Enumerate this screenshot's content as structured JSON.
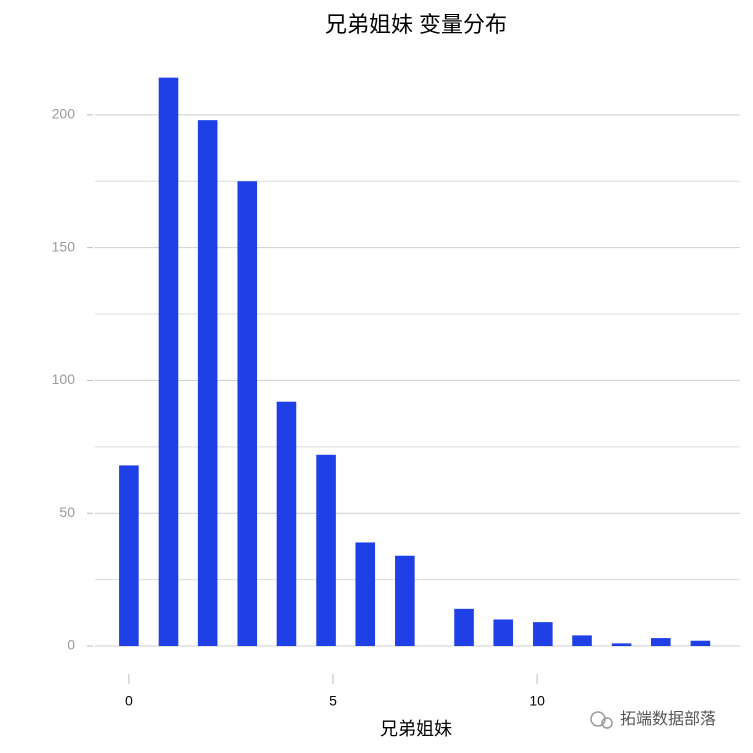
{
  "chart_data": {
    "type": "bar",
    "title": "兄弟姐妹 变量分布",
    "x_label": "兄弟姐妹",
    "x": [
      0,
      0.97,
      1.93,
      2.9,
      3.86,
      4.83,
      5.79,
      6.76,
      8.21,
      9.17,
      10.14,
      11.1,
      12.07,
      13.03,
      14
    ],
    "values": [
      68,
      214,
      198,
      175,
      92,
      72,
      39,
      34,
      14,
      10,
      9,
      4,
      1,
      3,
      2
    ],
    "color": "#1f40e6",
    "xlim": [
      -0.83,
      14.97
    ],
    "xticks": [
      0,
      5,
      10
    ],
    "ylim": [
      -3,
      215
    ],
    "yticks": [
      0,
      50,
      100,
      150,
      200
    ],
    "minor_yticks": [
      25,
      75,
      125,
      175
    ],
    "grid": true
  },
  "watermark": "拓端数据部落"
}
